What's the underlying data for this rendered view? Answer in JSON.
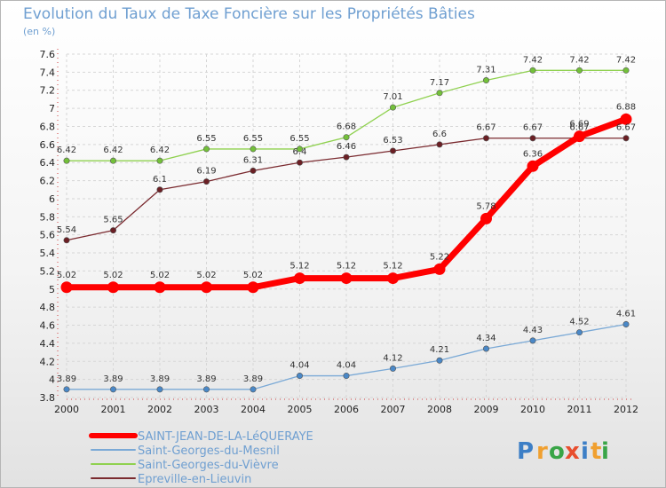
{
  "chart_data": {
    "type": "line",
    "title": "Evolution du Taux de Taxe Foncière sur les Propriétés Bâties",
    "subtitle": "(en %)",
    "x": [
      "2000",
      "2001",
      "2002",
      "2003",
      "2004",
      "2005",
      "2006",
      "2007",
      "2008",
      "2009",
      "2010",
      "2011",
      "2012"
    ],
    "ylim": [
      3.8,
      7.6
    ],
    "ystep": 0.2,
    "yticks": [
      "3.8",
      "4",
      "4.2",
      "4.4",
      "4.6",
      "4.8",
      "5",
      "5.2",
      "5.4",
      "5.6",
      "5.8",
      "6",
      "6.2",
      "6.4",
      "6.6",
      "6.8",
      "7",
      "7.2",
      "7.4",
      "7.6"
    ],
    "grid": true,
    "series": [
      {
        "name": "Saint-Georges-du-Vièvre",
        "color": "#8fd14f",
        "marker": "#73c03a",
        "values": [
          6.42,
          6.42,
          6.42,
          6.55,
          6.55,
          6.55,
          6.68,
          7.01,
          7.17,
          7.31,
          7.42,
          7.42,
          7.42
        ],
        "labels": [
          "6.42",
          "6.42",
          "6.42",
          "6.55",
          "6.55",
          "6.55",
          "6.68",
          "7.01",
          "7.17",
          "7.31",
          "7.42",
          "7.42",
          "7.42"
        ]
      },
      {
        "name": "Epreville-en-Lieuvin",
        "color": "#7a2a2f",
        "marker": "#6b1f24",
        "values": [
          5.54,
          5.65,
          6.1,
          6.19,
          6.31,
          6.4,
          6.46,
          6.53,
          6.6,
          6.67,
          6.67,
          6.67,
          6.67
        ],
        "labels": [
          "5.54",
          "5.65",
          "6.1",
          "6.19",
          "6.31",
          "6.4",
          "6.46",
          "6.53",
          "6.6",
          "6.67",
          "6.67",
          "6.67",
          "6.67"
        ]
      },
      {
        "name": "Saint-Georges-du-Mesnil",
        "color": "#7aa9d6",
        "marker": "#4a88c7",
        "values": [
          3.89,
          3.89,
          3.89,
          3.89,
          3.89,
          4.04,
          4.04,
          4.12,
          4.21,
          4.34,
          4.43,
          4.52,
          4.61
        ],
        "labels": [
          "3.89",
          "3.89",
          "3.89",
          "3.89",
          "3.89",
          "4.04",
          "4.04",
          "4.12",
          "4.21",
          "4.34",
          "4.43",
          "4.52",
          "4.61"
        ]
      },
      {
        "name": "SAINT-JEAN-DE-LA-LéQUERAYE",
        "color": "#ff0000",
        "marker": "#ff0000",
        "values": [
          5.02,
          5.02,
          5.02,
          5.02,
          5.02,
          5.12,
          5.12,
          5.12,
          5.22,
          5.78,
          6.36,
          6.69,
          6.88
        ],
        "labels": [
          "5.02",
          "5.02",
          "5.02",
          "5.02",
          "5.02",
          "5.12",
          "5.12",
          "5.12",
          "5.22",
          "5.78",
          "6.36",
          "6.69",
          "6.88"
        ]
      }
    ],
    "legend": [
      {
        "name": "SAINT-JEAN-DE-LA-LéQUERAYE",
        "color": "#ff0000",
        "thick": true
      },
      {
        "name": "Saint-Georges-du-Mesnil",
        "color": "#7aa9d6",
        "thick": false
      },
      {
        "name": "Saint-Georges-du-Vièvre",
        "color": "#8fd14f",
        "thick": false
      },
      {
        "name": "Epreville-en-Lieuvin",
        "color": "#7a2a2f",
        "thick": false
      }
    ]
  },
  "logo": {
    "letters": [
      "P",
      "r",
      "o",
      "x",
      "i",
      "t",
      "i"
    ],
    "colors": [
      "#3d7fc6",
      "#f0a030",
      "#39a547",
      "#e84e2e",
      "#3d7fc6",
      "#f0a030",
      "#39a547"
    ]
  }
}
